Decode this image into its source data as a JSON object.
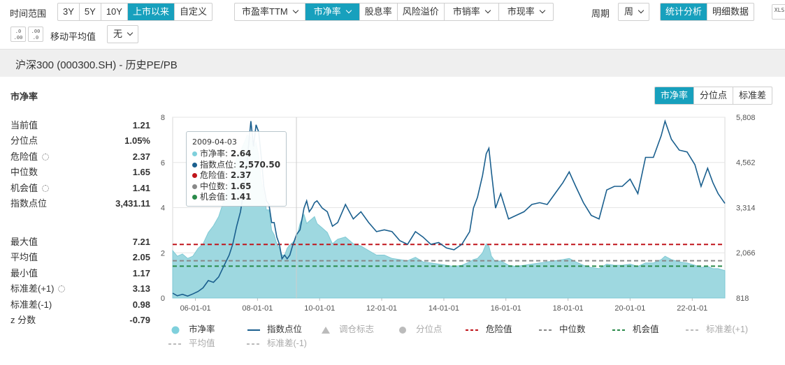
{
  "toolbar": {
    "time_range_label": "时间范围",
    "time_ranges": [
      "3Y",
      "5Y",
      "10Y",
      "上市以来",
      "自定义"
    ],
    "metrics": [
      "市盈率TTM",
      "市净率",
      "股息率",
      "风险溢价",
      "市销率",
      "市现率"
    ],
    "period_label": "周期",
    "period_value": "周",
    "view_modes": [
      "统计分析",
      "明细数据"
    ],
    "export_label": "XLS",
    "decimal_up": ".0 .00",
    "decimal_down": ".00 .0",
    "ma_label": "移动平均值",
    "ma_value": "无"
  },
  "page_title": "沪深300 (000300.SH) - 历史PE/PB",
  "section_title": "市净率",
  "view_tabs": [
    "市净率",
    "分位点",
    "标准差"
  ],
  "stats_group1": [
    {
      "label": "当前值",
      "value": "1.21"
    },
    {
      "label": "分位点",
      "value": "1.05%"
    },
    {
      "label": "危险值",
      "value": "2.37",
      "gear": true
    },
    {
      "label": "中位数",
      "value": "1.65"
    },
    {
      "label": "机会值",
      "value": "1.41",
      "gear": true
    },
    {
      "label": "指数点位",
      "value": "3,431.11"
    }
  ],
  "stats_group2": [
    {
      "label": "最大值",
      "value": "7.21"
    },
    {
      "label": "平均值",
      "value": "2.05"
    },
    {
      "label": "最小值",
      "value": "1.17"
    },
    {
      "label": "标准差(+1)",
      "value": "3.13",
      "gear": true
    },
    {
      "label": "标准差(-1)",
      "value": "0.98"
    },
    {
      "label": "z 分数",
      "value": "-0.79"
    }
  ],
  "tooltip": {
    "date": "2009-04-03",
    "rows": [
      {
        "label": "市净率:",
        "value": "2.64",
        "color": "#7fd0dc"
      },
      {
        "label": "指数点位:",
        "value": "2,570.50",
        "color": "#1a5f8e"
      },
      {
        "label": "危险值:",
        "value": "2.37",
        "color": "#c0151b"
      },
      {
        "label": "中位数:",
        "value": "1.65",
        "color": "#888888"
      },
      {
        "label": "机会值:",
        "value": "1.41",
        "color": "#2a8a4a"
      }
    ]
  },
  "legend": [
    {
      "label": "市净率",
      "kind": "area",
      "color": "#7fd0dc"
    },
    {
      "label": "指数点位",
      "kind": "line",
      "color": "#1a5f8e"
    },
    {
      "label": "调仓标志",
      "kind": "triangle",
      "color": "#bbbbbb",
      "dim": true
    },
    {
      "label": "分位点",
      "kind": "circle",
      "color": "#bbbbbb",
      "dim": true
    },
    {
      "label": "危险值",
      "kind": "dash",
      "color": "#c0151b"
    },
    {
      "label": "中位数",
      "kind": "dash",
      "color": "#888888"
    },
    {
      "label": "机会值",
      "kind": "dash",
      "color": "#2a8a4a"
    },
    {
      "label": "标准差(+1)",
      "kind": "dash",
      "color": "#bbbbbb",
      "dim": true
    },
    {
      "label": "平均值",
      "kind": "dash",
      "color": "#bbbbbb",
      "dim": true
    },
    {
      "label": "标准差(-1)",
      "kind": "dash",
      "color": "#bbbbbb",
      "dim": true
    }
  ],
  "colors": {
    "accent": "#17a0bd",
    "pb_area": "#9ed8e0",
    "index_line": "#1a5f8e",
    "danger": "#c0151b",
    "median": "#888888",
    "chance": "#2a8a4a"
  },
  "chart_data": {
    "type": "area",
    "x_tick_labels": [
      "06-01-01",
      "08-01-01",
      "10-01-01",
      "12-01-01",
      "14-01-01",
      "16-01-01",
      "18-01-01",
      "20-01-01",
      "22-01-01"
    ],
    "x_ticks": [
      "2006-01-01",
      "2008-01-01",
      "2010-01-01",
      "2012-01-01",
      "2014-01-01",
      "2016-01-01",
      "2018-01-01",
      "2020-01-01",
      "2022-01-01"
    ],
    "xlim": [
      "2005-04-08",
      "2023-01-20"
    ],
    "y_left": {
      "ticks": [
        "0",
        "2",
        "4",
        "6",
        "8"
      ],
      "range": [
        0,
        8
      ]
    },
    "y_right": {
      "ticks": [
        "818",
        "2,066",
        "3,314",
        "4,562",
        "5,808"
      ],
      "range": [
        818,
        5808
      ]
    },
    "reference_lines": [
      {
        "name": "危险值",
        "value": 2.37
      },
      {
        "name": "中位数",
        "value": 1.65
      },
      {
        "name": "机会值",
        "value": 1.41
      }
    ],
    "series": [
      {
        "name": "市净率",
        "axis": "left",
        "x": [
          "2005-04-08",
          "2005-06-01",
          "2005-08-01",
          "2005-10-01",
          "2005-12-01",
          "2006-02-01",
          "2006-04-01",
          "2006-06-01",
          "2006-08-01",
          "2006-10-01",
          "2006-12-01",
          "2007-02-01",
          "2007-03-15",
          "2007-05-01",
          "2007-06-15",
          "2007-08-01",
          "2007-09-01",
          "2007-10-15",
          "2007-11-15",
          "2007-12-15",
          "2008-01-15",
          "2008-02-15",
          "2008-03-15",
          "2008-04-15",
          "2008-05-15",
          "2008-06-15",
          "2008-07-15",
          "2008-08-15",
          "2008-09-15",
          "2008-10-15",
          "2008-11-15",
          "2008-12-15",
          "2009-01-15",
          "2009-02-15",
          "2009-04-03",
          "2009-05-15",
          "2009-07-01",
          "2009-08-01",
          "2009-09-01",
          "2009-10-01",
          "2009-11-01",
          "2009-12-01",
          "2010-02-01",
          "2010-04-01",
          "2010-06-01",
          "2010-08-01",
          "2010-11-01",
          "2011-02-01",
          "2011-05-01",
          "2011-08-01",
          "2011-11-01",
          "2012-02-01",
          "2012-05-01",
          "2012-08-01",
          "2012-11-01",
          "2013-02-01",
          "2013-05-01",
          "2013-08-01",
          "2013-11-01",
          "2014-02-01",
          "2014-05-01",
          "2014-08-01",
          "2014-11-01",
          "2014-12-15",
          "2015-02-01",
          "2015-04-01",
          "2015-05-15",
          "2015-06-15",
          "2015-07-15",
          "2015-09-01",
          "2015-11-01",
          "2016-02-01",
          "2016-05-01",
          "2016-08-01",
          "2016-11-01",
          "2017-02-01",
          "2017-05-01",
          "2017-08-01",
          "2017-11-01",
          "2018-01-15",
          "2018-04-01",
          "2018-07-01",
          "2018-10-01",
          "2019-01-01",
          "2019-04-01",
          "2019-07-01",
          "2019-10-01",
          "2020-01-01",
          "2020-04-01",
          "2020-07-01",
          "2020-10-01",
          "2021-01-01",
          "2021-02-15",
          "2021-05-01",
          "2021-08-01",
          "2021-11-01",
          "2022-02-01",
          "2022-04-15",
          "2022-07-01",
          "2022-09-01",
          "2022-11-01",
          "2023-01-20"
        ],
        "values": [
          2.1,
          1.85,
          1.95,
          1.75,
          1.85,
          2.2,
          2.4,
          2.9,
          3.2,
          3.6,
          4.3,
          5.2,
          5.6,
          6.2,
          6.5,
          6.9,
          7.21,
          7.1,
          6.6,
          6.9,
          6.3,
          5.2,
          4.6,
          3.9,
          3.9,
          3.0,
          2.8,
          2.4,
          2.2,
          1.9,
          1.9,
          2.2,
          2.35,
          2.45,
          2.64,
          3.3,
          3.7,
          3.3,
          3.4,
          3.5,
          3.6,
          3.3,
          3.1,
          2.9,
          2.4,
          2.6,
          2.7,
          2.4,
          2.3,
          2.1,
          1.9,
          1.9,
          1.75,
          1.7,
          1.65,
          1.8,
          1.6,
          1.55,
          1.5,
          1.45,
          1.4,
          1.45,
          1.6,
          1.7,
          1.75,
          2.0,
          2.4,
          2.3,
          1.85,
          1.6,
          1.65,
          1.45,
          1.4,
          1.45,
          1.5,
          1.55,
          1.6,
          1.65,
          1.7,
          1.75,
          1.6,
          1.45,
          1.35,
          1.3,
          1.5,
          1.45,
          1.45,
          1.5,
          1.4,
          1.55,
          1.55,
          1.7,
          1.85,
          1.7,
          1.6,
          1.55,
          1.45,
          1.35,
          1.4,
          1.3,
          1.3,
          1.21
        ]
      },
      {
        "name": "指数点位",
        "axis": "right",
        "x": [
          "2005-04-08",
          "2005-06-01",
          "2005-08-01",
          "2005-10-01",
          "2005-12-01",
          "2006-02-01",
          "2006-04-01",
          "2006-06-01",
          "2006-08-01",
          "2006-10-01",
          "2006-12-01",
          "2007-02-01",
          "2007-03-15",
          "2007-05-01",
          "2007-06-15",
          "2007-08-01",
          "2007-09-01",
          "2007-10-15",
          "2007-11-15",
          "2007-12-15",
          "2008-01-15",
          "2008-02-15",
          "2008-03-15",
          "2008-04-15",
          "2008-05-15",
          "2008-06-15",
          "2008-07-15",
          "2008-08-15",
          "2008-09-15",
          "2008-10-15",
          "2008-11-15",
          "2008-12-15",
          "2009-01-15",
          "2009-02-15",
          "2009-04-03",
          "2009-05-15",
          "2009-07-01",
          "2009-08-01",
          "2009-09-01",
          "2009-10-01",
          "2009-11-01",
          "2009-12-01",
          "2010-02-01",
          "2010-04-01",
          "2010-06-01",
          "2010-08-01",
          "2010-11-01",
          "2011-02-01",
          "2011-05-01",
          "2011-08-01",
          "2011-11-01",
          "2012-02-01",
          "2012-05-01",
          "2012-08-01",
          "2012-11-01",
          "2013-02-01",
          "2013-05-01",
          "2013-08-01",
          "2013-11-01",
          "2014-02-01",
          "2014-05-01",
          "2014-08-01",
          "2014-11-01",
          "2014-12-15",
          "2015-02-01",
          "2015-04-01",
          "2015-05-15",
          "2015-06-15",
          "2015-07-15",
          "2015-09-01",
          "2015-11-01",
          "2016-02-01",
          "2016-05-01",
          "2016-08-01",
          "2016-11-01",
          "2017-02-01",
          "2017-05-01",
          "2017-08-01",
          "2017-11-01",
          "2018-01-15",
          "2018-04-01",
          "2018-07-01",
          "2018-10-01",
          "2019-01-01",
          "2019-04-01",
          "2019-07-01",
          "2019-10-01",
          "2020-01-01",
          "2020-04-01",
          "2020-07-01",
          "2020-10-01",
          "2021-01-01",
          "2021-02-15",
          "2021-05-01",
          "2021-08-01",
          "2021-11-01",
          "2022-02-01",
          "2022-04-15",
          "2022-07-01",
          "2022-09-01",
          "2022-11-01",
          "2023-01-20"
        ],
        "values": [
          950,
          880,
          920,
          870,
          930,
          1000,
          1100,
          1300,
          1250,
          1400,
          1700,
          2000,
          2300,
          2800,
          3200,
          3900,
          4600,
          5700,
          5000,
          5600,
          5400,
          4700,
          3900,
          3500,
          3400,
          2900,
          2900,
          2500,
          2300,
          1900,
          2000,
          1900,
          2000,
          2250,
          2570,
          2700,
          3300,
          3500,
          3200,
          3300,
          3450,
          3500,
          3300,
          3200,
          2800,
          2900,
          3400,
          3000,
          3200,
          2900,
          2650,
          2700,
          2650,
          2400,
          2300,
          2650,
          2500,
          2300,
          2350,
          2200,
          2150,
          2300,
          2650,
          3300,
          3600,
          4200,
          4800,
          4950,
          4300,
          3300,
          3700,
          3000,
          3100,
          3200,
          3400,
          3450,
          3400,
          3700,
          4000,
          4300,
          3900,
          3450,
          3100,
          3000,
          3800,
          3900,
          3900,
          4100,
          3700,
          4700,
          4700,
          5300,
          5700,
          5200,
          4900,
          4850,
          4500,
          3900,
          4400,
          4000,
          3700,
          3431
        ]
      }
    ]
  }
}
